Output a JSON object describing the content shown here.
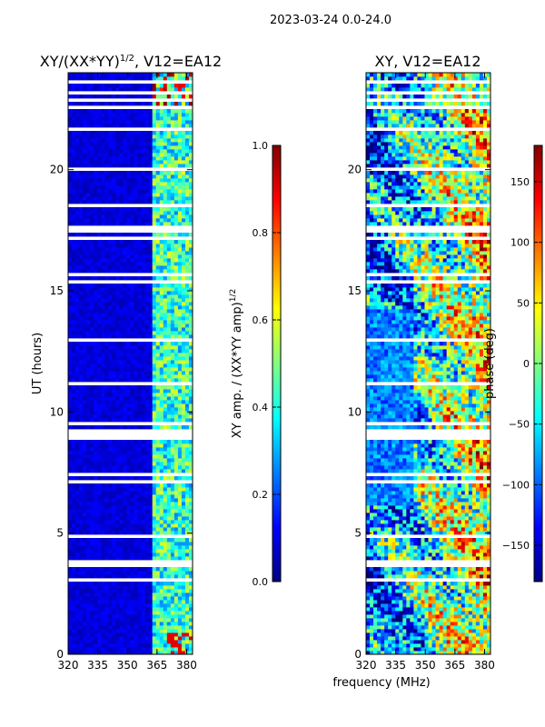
{
  "colors": {
    "jet": [
      "#00007f",
      "#0000ff",
      "#007fff",
      "#00ffff",
      "#7fff7f",
      "#ffff00",
      "#ff7f00",
      "#ff0000",
      "#7f0000"
    ],
    "gap": "#ffffff",
    "axis": "#000000"
  },
  "chart_data": [
    {
      "type": "heatmap",
      "suptitle": "2023-03-24 0.0-24.0",
      "title_text": "XY/(XX*YY)",
      "title_exp": "1/2",
      "title_suffix": ", V12=EA12",
      "xlabel": "",
      "ylabel": "UT (hours)",
      "xlim": [
        320,
        383
      ],
      "ylim": [
        0,
        24
      ],
      "xticks": [
        "320",
        "335",
        "350",
        "365",
        "380"
      ],
      "xtick_values": [
        320,
        335,
        350,
        365,
        380
      ],
      "yticks": [
        "0",
        "5",
        "10",
        "15",
        "20"
      ],
      "ytick_values": [
        0,
        5,
        10,
        15,
        20
      ],
      "quantity": "normalized XY amplitude",
      "value_range": [
        0.0,
        1.0
      ],
      "colorbar": {
        "label_text": "XY amp. / (XX*YY amp)",
        "label_exp": "1/2",
        "range": [
          0.0,
          1.0
        ],
        "ticks": [
          "0.0",
          "0.2",
          "0.4",
          "0.6",
          "0.8",
          "1.0"
        ],
        "tick_values": [
          0.0,
          0.2,
          0.4,
          0.6,
          0.8,
          1.0
        ]
      }
    },
    {
      "type": "heatmap",
      "title_text": "XY, V12=EA12",
      "xlabel": "frequency (MHz)",
      "ylabel": "",
      "xlim": [
        320,
        383
      ],
      "ylim": [
        0,
        24
      ],
      "xticks": [
        "320",
        "335",
        "350",
        "365",
        "380"
      ],
      "xtick_values": [
        320,
        335,
        350,
        365,
        380
      ],
      "yticks": [
        "0",
        "5",
        "10",
        "15",
        "20"
      ],
      "ytick_values": [
        0,
        5,
        10,
        15,
        20
      ],
      "quantity": "XY phase (deg)",
      "value_range": [
        -180,
        180
      ],
      "colorbar": {
        "label_text": "phase (deg)",
        "range": [
          -180,
          180
        ],
        "ticks": [
          "−150",
          "−100",
          "−50",
          "0",
          "50",
          "100",
          "150"
        ],
        "tick_values": [
          -150,
          -100,
          -50,
          0,
          50,
          100,
          150
        ]
      }
    }
  ]
}
